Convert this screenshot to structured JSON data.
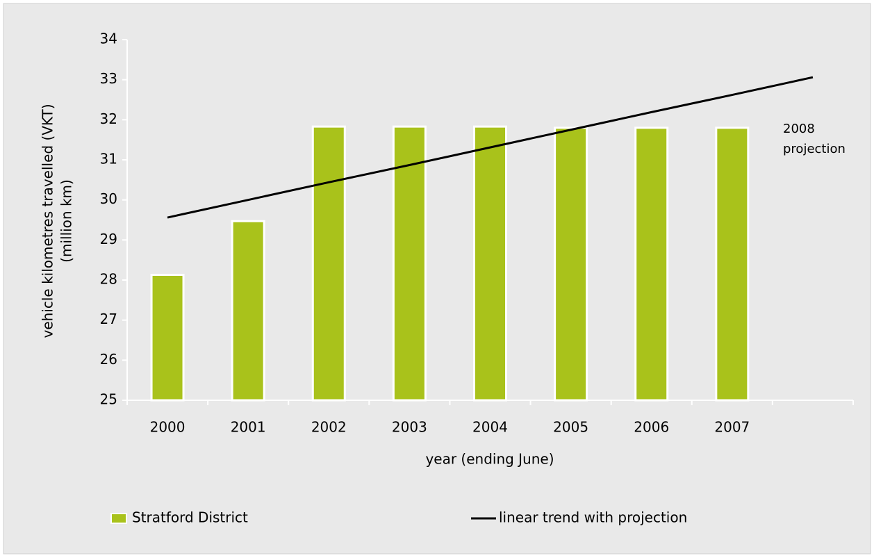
{
  "chart_data": {
    "type": "bar",
    "categories": [
      "2000",
      "2001",
      "2002",
      "2003",
      "2004",
      "2005",
      "2006",
      "2007",
      null
    ],
    "series": [
      {
        "name": "Stratford District",
        "color": "#a9c21b",
        "values": [
          28.13,
          29.47,
          31.83,
          31.83,
          31.83,
          31.8,
          31.8,
          31.8,
          null
        ]
      },
      {
        "name": "linear trend with projection",
        "color": "#000000",
        "type": "line",
        "values": [
          29.56,
          30.0,
          30.44,
          30.87,
          31.31,
          31.75,
          32.19,
          32.62,
          33.06
        ]
      }
    ],
    "ylim": [
      25,
      34
    ],
    "yticks": [
      25,
      26,
      27,
      28,
      29,
      30,
      31,
      32,
      33,
      34
    ],
    "ylabel": [
      "vehicle kilometres travelled (VKT)",
      "(million km)"
    ],
    "xlabel": "year (ending June)",
    "annotation": [
      "2008",
      "projection"
    ]
  }
}
